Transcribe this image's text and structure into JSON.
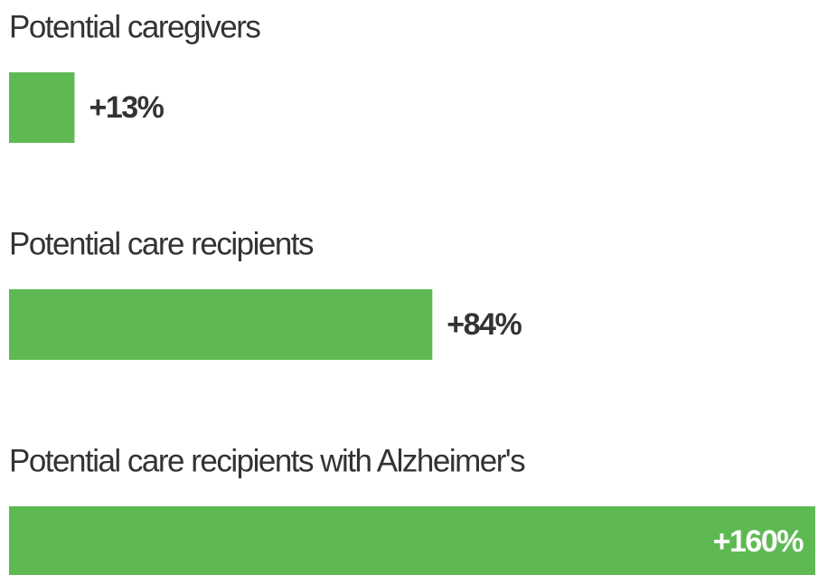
{
  "chart_data": {
    "type": "bar",
    "orientation": "horizontal",
    "categories": [
      "Potential caregivers",
      "Potential care recipients",
      "Potential care recipients with Alzheimer's"
    ],
    "values": [
      13,
      84,
      160
    ],
    "value_labels": [
      "+13%",
      "+84%",
      "+160%"
    ],
    "color": "#5eb953"
  }
}
